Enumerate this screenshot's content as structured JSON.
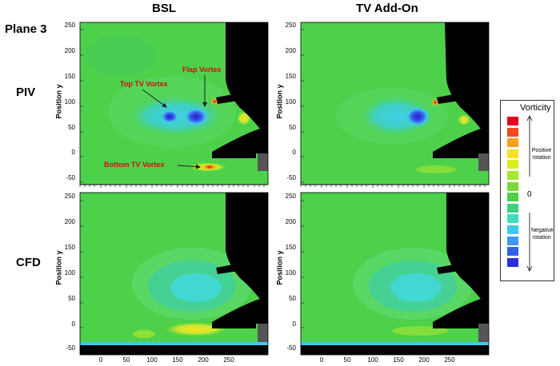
{
  "figure": {
    "plane_label": "Plane 3",
    "columns": [
      "BSL",
      "TV Add-On"
    ],
    "rows": [
      "PIV",
      "CFD"
    ],
    "y_axis_label": "Position y",
    "y_ticks": [
      "250",
      "200",
      "150",
      "100",
      "50",
      "0",
      "-50"
    ],
    "x_ticks": [
      "0",
      "50",
      "100",
      "150",
      "200",
      "250"
    ],
    "annotations": {
      "top_tv": "Top TV Vortex",
      "flap": "Flap Vortex",
      "bottom_tv": "Bottom TV Vortex"
    },
    "annotation_color": "#d01010"
  },
  "legend": {
    "title": "Vorticity",
    "positive": "Positive rotation",
    "negative": "Negative rotation",
    "zero": "0",
    "colors": [
      "#e8001c",
      "#f04a20",
      "#f7a020",
      "#f8e020",
      "#d8ee20",
      "#a8e630",
      "#7ad83a",
      "#4dd04a",
      "#40d080",
      "#40dcc0",
      "#40c8f0",
      "#4098f0",
      "#3060e8",
      "#2a30d8"
    ]
  }
}
